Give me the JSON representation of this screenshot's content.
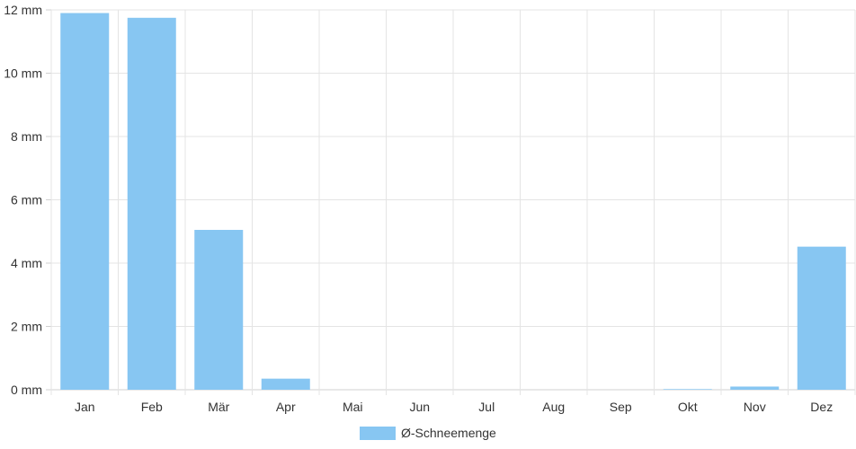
{
  "chart_data": {
    "type": "bar",
    "categories": [
      "Jan",
      "Feb",
      "Mär",
      "Apr",
      "Mai",
      "Jun",
      "Jul",
      "Aug",
      "Sep",
      "Okt",
      "Nov",
      "Dez"
    ],
    "series": [
      {
        "name": "Ø-Schneemenge",
        "values": [
          11.9,
          11.75,
          5.05,
          0.35,
          0,
          0,
          0,
          0,
          0,
          0.02,
          0.1,
          4.52
        ],
        "color": "#87c6f2"
      }
    ],
    "ylim": [
      0,
      12
    ],
    "yticks": [
      "0 mm",
      "2 mm",
      "4 mm",
      "6 mm",
      "8 mm",
      "10 mm",
      "12 mm"
    ],
    "grid": true,
    "legend": "bottom-center"
  }
}
